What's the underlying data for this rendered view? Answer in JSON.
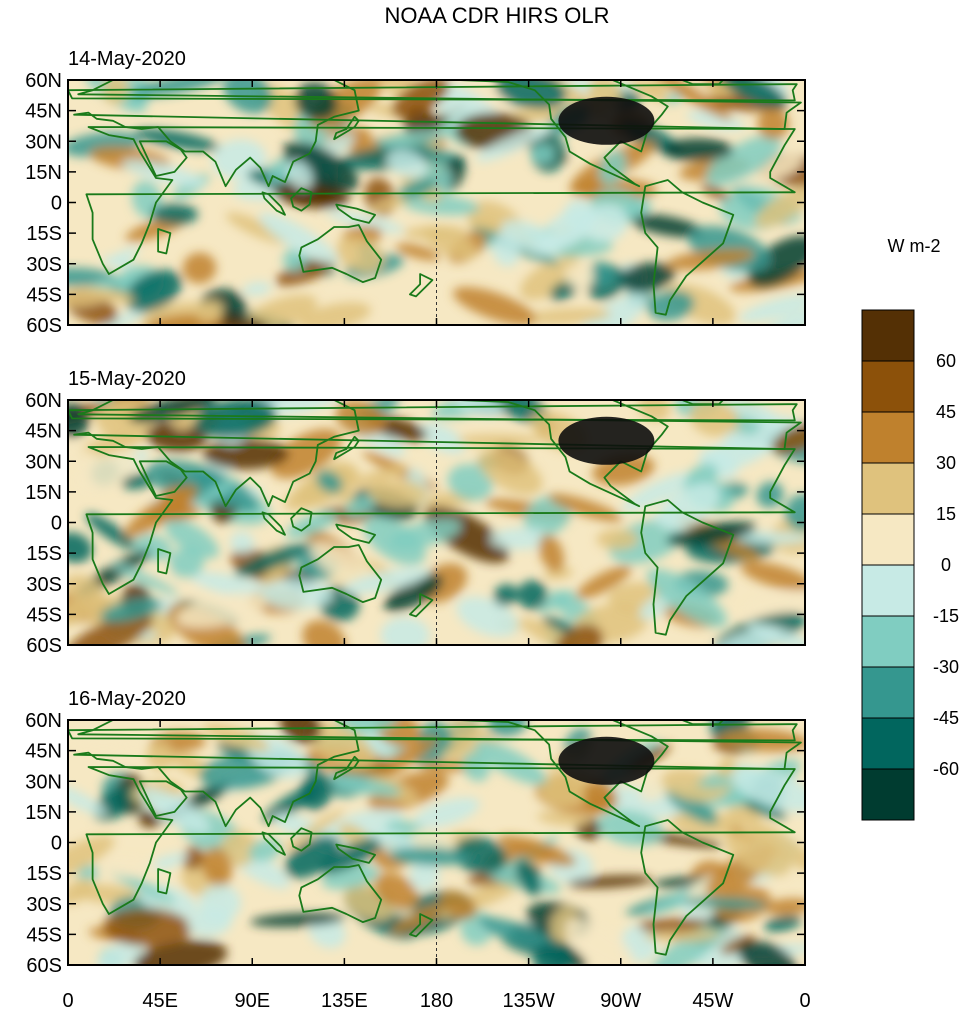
{
  "title": "NOAA CDR HIRS OLR",
  "panels": [
    {
      "date": "14-May-2020"
    },
    {
      "date": "15-May-2020"
    },
    {
      "date": "16-May-2020"
    }
  ],
  "lat_labels": [
    "60N",
    "45N",
    "30N",
    "15N",
    "0",
    "15S",
    "30S",
    "45S",
    "60S"
  ],
  "lon_labels": [
    "0",
    "45E",
    "90E",
    "135E",
    "180",
    "135W",
    "90W",
    "45W",
    "0"
  ],
  "colorbar": {
    "units": "W m-2",
    "labels": [
      "60",
      "45",
      "30",
      "15",
      "0",
      "-15",
      "-30",
      "-45",
      "-60"
    ],
    "colors": [
      "#543005",
      "#8c510a",
      "#bf812d",
      "#dfc27d",
      "#f6e8c3",
      "#c7eae5",
      "#80cdc1",
      "#35978f",
      "#01665e",
      "#003c30"
    ]
  },
  "colors": {
    "coastline": "#1a7a1a",
    "land_anomaly": "#0d0d0d"
  }
}
